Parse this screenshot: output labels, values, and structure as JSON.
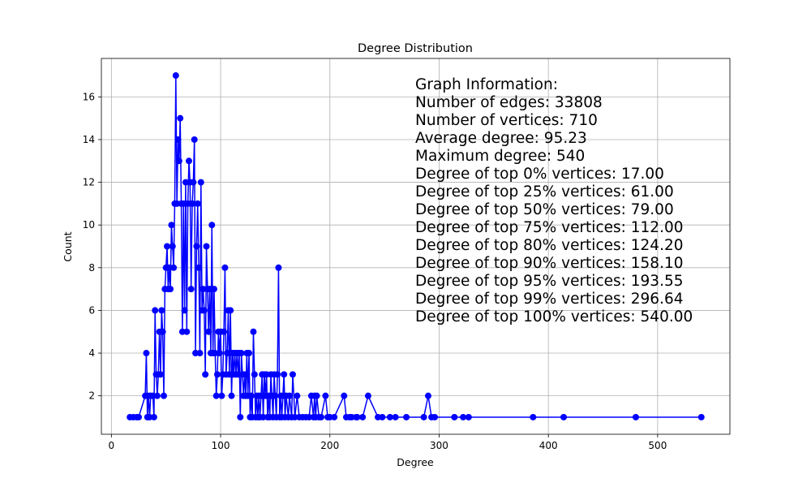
{
  "chart_data": {
    "type": "line",
    "title": "Degree Distribution",
    "x_label": "Degree",
    "y_label": "Count",
    "color": "#0000ff",
    "grid": true,
    "x": [
      17,
      20,
      23,
      25,
      31,
      32,
      33,
      34,
      35,
      36,
      38,
      39,
      40,
      41,
      42,
      43,
      44,
      45,
      46,
      47,
      48,
      49,
      50,
      51,
      52,
      53,
      54,
      55,
      56,
      57,
      58,
      59,
      60,
      61,
      62,
      63,
      64,
      65,
      66,
      67,
      68,
      69,
      70,
      71,
      72,
      73,
      74,
      75,
      76,
      77,
      78,
      79,
      80,
      81,
      82,
      83,
      84,
      85,
      86,
      87,
      88,
      89,
      90,
      91,
      92,
      93,
      94,
      95,
      96,
      97,
      98,
      99,
      100,
      101,
      102,
      103,
      104,
      105,
      106,
      107,
      108,
      109,
      110,
      111,
      112,
      113,
      114,
      115,
      116,
      117,
      118,
      119,
      120,
      121,
      122,
      123,
      124,
      125,
      126,
      127,
      128,
      129,
      130,
      131,
      132,
      133,
      134,
      135,
      136,
      137,
      138,
      139,
      140,
      141,
      142,
      143,
      144,
      145,
      146,
      147,
      148,
      149,
      150,
      151,
      152,
      153,
      154,
      155,
      156,
      157,
      158,
      159,
      160,
      162,
      163,
      165,
      166,
      168,
      170,
      172,
      175,
      178,
      181,
      183,
      185,
      186,
      187,
      188,
      190,
      192,
      196,
      198,
      200,
      204,
      213,
      215,
      218,
      220,
      224,
      225,
      230,
      235,
      244,
      248,
      255,
      260,
      270,
      286,
      290,
      293,
      296,
      314,
      322,
      327,
      386,
      414,
      480,
      540
    ],
    "values": [
      1,
      1,
      1,
      1,
      2,
      4,
      1,
      2,
      1,
      2,
      2,
      1,
      6,
      3,
      2,
      3,
      5,
      3,
      6,
      5,
      2,
      7,
      8,
      9,
      7,
      8,
      7,
      10,
      9,
      8,
      11,
      17,
      11,
      14,
      13,
      15,
      11,
      5,
      11,
      6,
      12,
      5,
      11,
      13,
      12,
      7,
      11,
      12,
      14,
      4,
      9,
      11,
      8,
      4,
      12,
      6,
      7,
      6,
      3,
      9,
      7,
      5,
      7,
      4,
      10,
      4,
      7,
      4,
      2,
      3,
      5,
      4,
      5,
      2,
      3,
      5,
      8,
      3,
      4,
      6,
      3,
      6,
      2,
      4,
      3,
      4,
      3,
      4,
      3,
      4,
      1,
      4,
      3,
      2,
      3,
      2,
      4,
      2,
      4,
      1,
      2,
      1,
      5,
      3,
      1,
      2,
      1,
      2,
      1,
      2,
      3,
      1,
      3,
      2,
      3,
      1,
      2,
      1,
      3,
      2,
      1,
      3,
      2,
      1,
      3,
      8,
      1,
      2,
      1,
      2,
      3,
      1,
      2,
      1,
      2,
      1,
      3,
      1,
      2,
      1,
      1,
      1,
      1,
      2,
      1,
      2,
      1,
      2,
      1,
      1,
      2,
      1,
      1,
      1,
      2,
      1,
      1,
      1,
      1,
      1,
      1,
      2,
      1,
      1,
      1,
      1,
      1,
      1,
      2,
      1,
      1,
      1,
      1,
      1,
      1,
      1,
      1,
      1
    ],
    "xlim": [
      -9.15,
      566.15
    ],
    "ylim": [
      0.2,
      17.8
    ],
    "xticks": [
      0,
      100,
      200,
      300,
      400,
      500
    ],
    "yticks": [
      2,
      4,
      6,
      8,
      10,
      12,
      14,
      16
    ],
    "annotation": [
      "Graph Information:",
      "Number of edges: 33808",
      "Number of vertices: 710",
      "Average degree: 95.23",
      "Maximum degree: 540",
      "Degree of top 0% vertices: 17.00",
      "Degree of top 25% vertices: 61.00",
      "Degree of top 50% vertices: 79.00",
      "Degree of top 75% vertices: 112.00",
      "Degree of top 80% vertices: 124.20",
      "Degree of top 90% vertices: 158.10",
      "Degree of top 95% vertices: 193.55",
      "Degree of top 99% vertices: 296.64",
      "Degree of top 100% vertices: 540.00"
    ]
  }
}
